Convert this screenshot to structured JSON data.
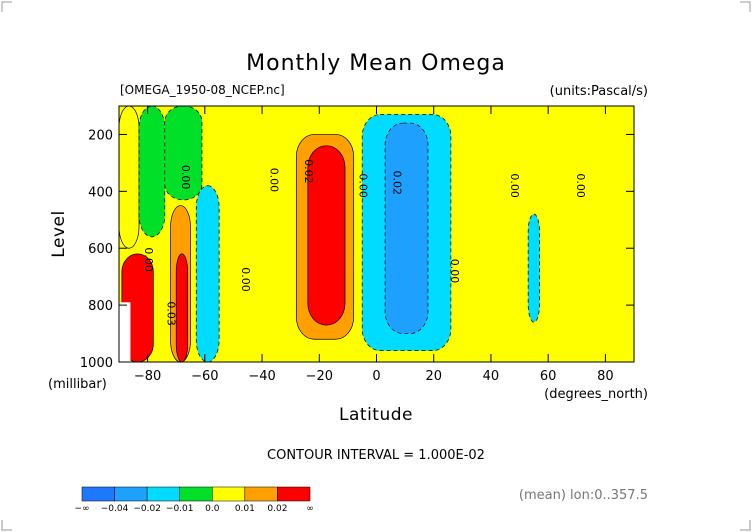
{
  "title": "Monthly Mean Omega",
  "file_label": "[OMEGA_1950-08_NCEP.nc]",
  "units_label": "(units:Pascal/s)",
  "contour_interval_text": "CONTOUR INTERVAL = 1.000E-02",
  "footer_note": "(mean) lon:0..357.5",
  "chart_data": {
    "type": "heatmap",
    "title": "Monthly Mean Omega",
    "xlabel": "Latitude",
    "x_unit": "(degrees_north)",
    "ylabel": "Level",
    "y_unit": "(millibar)",
    "xlim": [
      -90,
      90
    ],
    "ylim": [
      1000,
      100
    ],
    "x_ticks": [
      -80,
      -60,
      -40,
      -20,
      0,
      20,
      40,
      60,
      80
    ],
    "y_ticks": [
      200,
      400,
      600,
      800,
      1000
    ],
    "contour_interval": 0.01,
    "legend": {
      "bounds": [
        "-∞",
        "-0.04",
        "-0.02",
        "-0.01",
        "0.0",
        "0.01",
        "0.02",
        "∞"
      ],
      "colors": [
        "#1e78ff",
        "#1ea0ff",
        "#00dcff",
        "#00e028",
        "#ffff00",
        "#ffa000",
        "#ff0000"
      ]
    },
    "regions": [
      {
        "lat": [
          -90,
          -83
        ],
        "level": [
          100,
          600
        ],
        "value": 0.005
      },
      {
        "lat": [
          -83,
          -74
        ],
        "level": [
          100,
          560
        ],
        "value": -0.005
      },
      {
        "lat": [
          -74,
          -61
        ],
        "level": [
          100,
          430
        ],
        "value": -0.005
      },
      {
        "lat": [
          -72,
          -65
        ],
        "level": [
          450,
          1000
        ],
        "value": 0.015
      },
      {
        "lat": [
          -70,
          -66
        ],
        "level": [
          620,
          1000
        ],
        "value": 0.025
      },
      {
        "lat": [
          -89,
          -78
        ],
        "level": [
          620,
          1000
        ],
        "value": 0.025
      },
      {
        "lat": [
          -63,
          -55
        ],
        "level": [
          380,
          1000
        ],
        "value": -0.015
      },
      {
        "lat": [
          -28,
          -8
        ],
        "level": [
          200,
          920
        ],
        "value": 0.015
      },
      {
        "lat": [
          -24,
          -11
        ],
        "level": [
          240,
          870
        ],
        "value": 0.03
      },
      {
        "lat": [
          -5,
          26
        ],
        "level": [
          130,
          960
        ],
        "value": -0.015
      },
      {
        "lat": [
          3,
          18
        ],
        "level": [
          160,
          900
        ],
        "value": -0.03
      },
      {
        "lat": [
          53,
          57
        ],
        "level": [
          480,
          860
        ],
        "value": -0.015
      }
    ],
    "contour_labels": [
      {
        "text": "0.00",
        "lat": -68,
        "level": 350
      },
      {
        "text": "0.00",
        "lat": -37,
        "level": 360
      },
      {
        "text": "0.02",
        "lat": -25,
        "level": 330
      },
      {
        "text": "0.00",
        "lat": -6,
        "level": 380
      },
      {
        "text": "0.02",
        "lat": 6,
        "level": 370
      },
      {
        "text": "0.00",
        "lat": 47,
        "level": 380
      },
      {
        "text": "0.00",
        "lat": 70,
        "level": 380
      },
      {
        "text": "0.00",
        "lat": -81,
        "level": 640
      },
      {
        "text": "0.00",
        "lat": -47,
        "level": 710
      },
      {
        "text": "0.00",
        "lat": 26,
        "level": 680
      },
      {
        "text": "0.03",
        "lat": -73,
        "level": 830
      }
    ]
  }
}
